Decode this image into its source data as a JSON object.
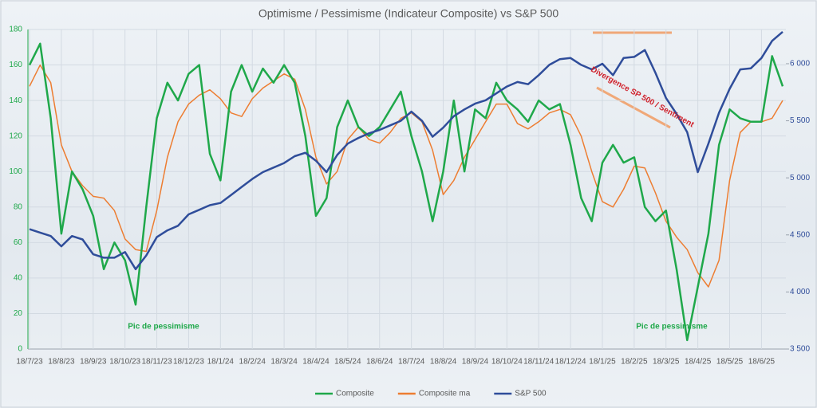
{
  "chart_data": {
    "type": "line",
    "title": "Optimisme / Pessimisme (Indicateur Composite) vs S&P 500",
    "categories": [
      "18/7/23",
      null,
      null,
      "18/8/23",
      null,
      null,
      "18/9/23",
      null,
      null,
      "18/10/23",
      null,
      null,
      "18/11/23",
      null,
      null,
      "18/12/23",
      null,
      null,
      "18/1/24",
      null,
      null,
      "18/2/24",
      null,
      null,
      "18/3/24",
      null,
      null,
      "18/4/24",
      null,
      null,
      "18/5/24",
      null,
      null,
      "18/6/24",
      null,
      null,
      "18/7/24",
      null,
      null,
      "18/8/24",
      null,
      null,
      "18/9/24",
      null,
      null,
      "18/10/24",
      null,
      null,
      "18/11/24",
      null,
      null,
      "18/12/24",
      null,
      null,
      "18/1/25",
      null,
      null,
      "18/2/25",
      null,
      null,
      "18/3/25",
      null,
      null,
      "18/4/25",
      null,
      null,
      "18/5/25",
      null,
      null,
      "18/6/25",
      null,
      null
    ],
    "series": [
      {
        "name": "Composite",
        "color": "#1fa84a",
        "values": [
          160,
          172,
          130,
          65,
          100,
          90,
          75,
          45,
          60,
          50,
          25,
          80,
          130,
          150,
          140,
          155,
          160,
          110,
          95,
          145,
          160,
          145,
          158,
          150,
          160,
          150,
          120,
          75,
          85,
          125,
          140,
          125,
          120,
          125,
          135,
          145,
          120,
          100,
          72,
          100,
          140,
          100,
          135,
          130,
          150,
          140,
          135,
          128,
          140,
          135,
          138,
          115,
          85,
          72,
          105,
          115,
          105,
          108,
          80,
          72,
          78,
          45,
          5,
          35,
          65,
          115,
          135,
          130,
          128,
          128,
          165,
          148
        ]
      },
      {
        "name": "Composite ma",
        "color": "#ed7d31",
        "values": [
          148,
          160,
          150,
          115,
          100,
          92,
          86,
          85,
          78,
          62,
          56,
          55,
          78,
          108,
          128,
          138,
          143,
          146,
          141,
          133,
          131,
          141,
          147,
          151,
          155,
          152,
          135,
          108,
          93,
          100,
          118,
          125,
          118,
          116,
          122,
          130,
          133,
          128,
          112,
          87,
          95,
          108,
          118,
          128,
          138,
          138,
          127,
          124,
          128,
          133,
          135,
          132,
          120,
          100,
          83,
          80,
          90,
          103,
          102,
          88,
          72,
          63,
          56,
          43,
          35,
          50,
          95,
          122,
          128,
          128,
          130,
          140
        ]
      },
      {
        "name": "S&P 500",
        "color": "#2f4d9a",
        "axis": "y2",
        "values": [
          4550,
          4520,
          4490,
          4400,
          4490,
          4460,
          4330,
          4300,
          4300,
          4350,
          4200,
          4320,
          4480,
          4540,
          4580,
          4680,
          4720,
          4760,
          4780,
          4850,
          4920,
          4990,
          5050,
          5090,
          5130,
          5190,
          5220,
          5150,
          5050,
          5200,
          5300,
          5350,
          5390,
          5420,
          5460,
          5500,
          5580,
          5500,
          5360,
          5440,
          5540,
          5600,
          5650,
          5680,
          5740,
          5800,
          5840,
          5820,
          5900,
          5990,
          6040,
          6050,
          5990,
          5950,
          6000,
          5900,
          6050,
          6060,
          6120,
          5920,
          5700,
          5560,
          5400,
          5050,
          5300,
          5570,
          5780,
          5950,
          5960,
          6050,
          6200,
          6280
        ]
      }
    ],
    "ylim": [
      0,
      180
    ],
    "yticks": [
      0,
      20,
      40,
      60,
      80,
      100,
      120,
      140,
      160,
      180
    ],
    "y2lim": [
      3500,
      6300
    ],
    "y2ticks": [
      {
        "value": 3500,
        "label": "3 500"
      },
      {
        "value": 4000,
        "label": "4 000"
      },
      {
        "value": 4500,
        "label": "4 500"
      },
      {
        "value": 5000,
        "label": "5 000"
      },
      {
        "value": 5500,
        "label": "5 500"
      },
      {
        "value": 6000,
        "label": "6 000"
      }
    ],
    "grid": true,
    "legend": "bottom",
    "annotations": [
      "Pic de pessimisme",
      "Pic de pessimisme",
      "Divergence SP 500 / Sentiment"
    ]
  }
}
